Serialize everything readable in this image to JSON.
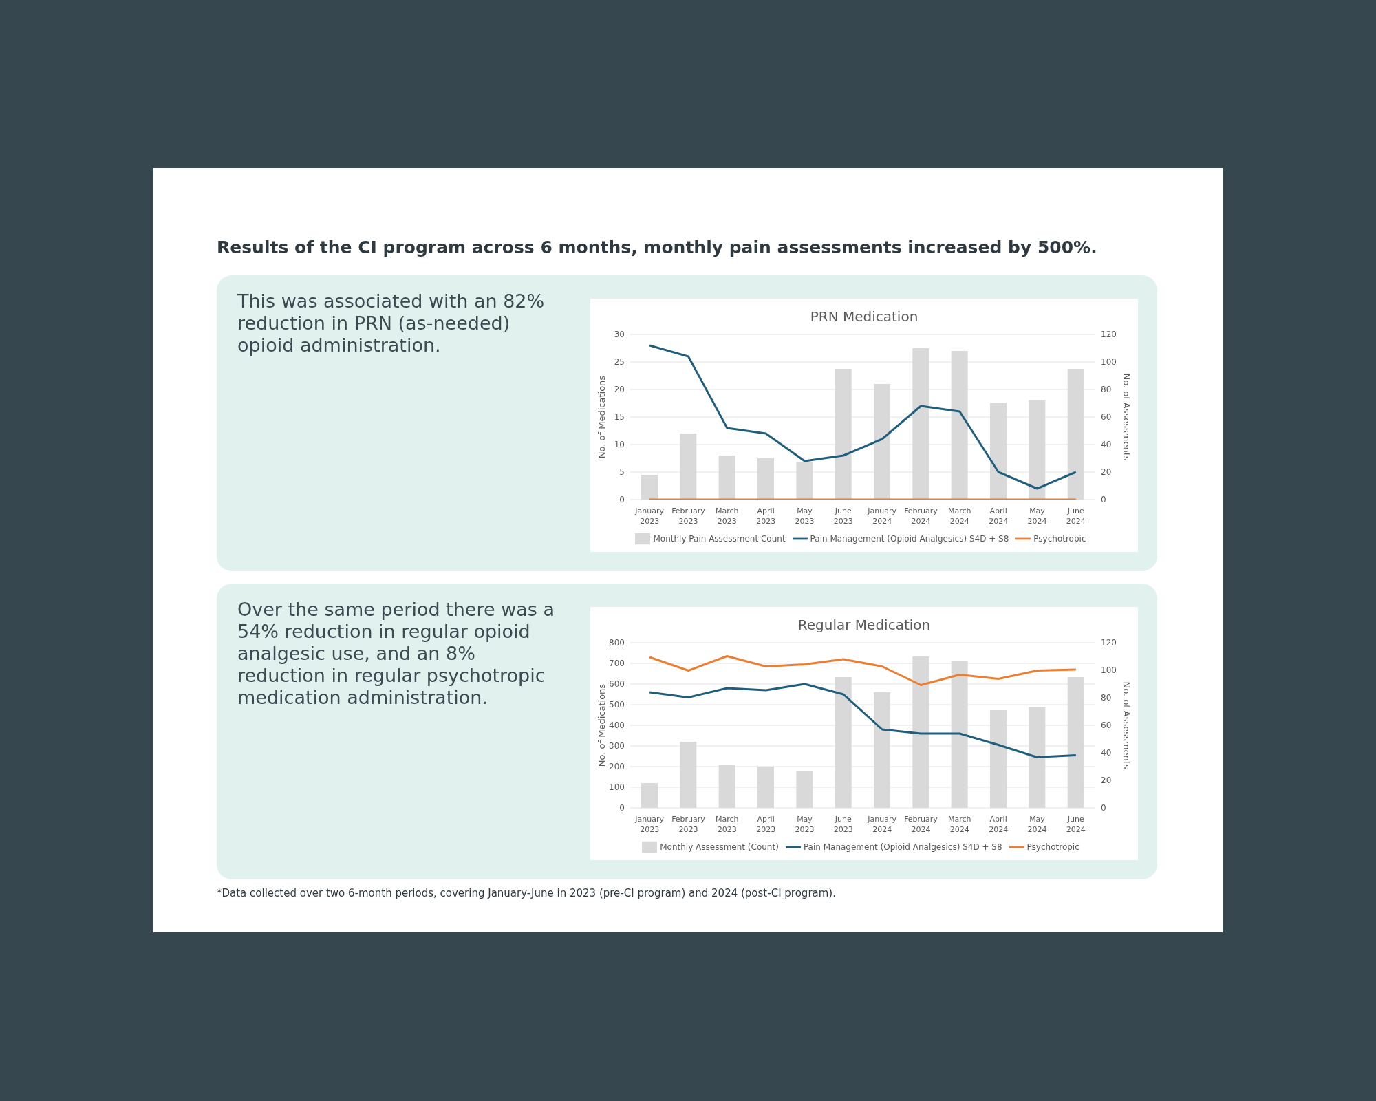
{
  "chart_data": [
    {
      "type": "bar",
      "title": "PRN Medication",
      "ylabel": "No. of Medications",
      "y2label": "No. of Assessments",
      "annotations": [
        "Results of the CI program across 6 months, monthly pain assessments increased by 500%.",
        "This was associated with an 82% reduction in PRN (as-needed) opioid administration."
      ],
      "categories": [
        "January 2023",
        "February 2023",
        "March 2023",
        "April 2023",
        "May 2023",
        "June 2023",
        "January 2024",
        "February 2024",
        "March 2024",
        "April 2024",
        "May 2024",
        "June 2024"
      ],
      "series": [
        {
          "name": "Monthly Pain Assessment Count",
          "axis": "y2",
          "color": "#d9d9d9",
          "values": [
            18,
            48,
            32,
            30,
            27,
            95,
            84,
            110,
            108,
            70,
            72,
            95
          ]
        },
        {
          "name": "Pain Management (Opioid Analgesics) S4D + S8",
          "type": "line",
          "color": "#1f5f7d",
          "values": [
            28,
            26,
            13,
            12,
            7,
            8,
            11,
            17,
            16,
            5,
            2,
            5
          ]
        },
        {
          "name": "Psychotropic",
          "type": "line",
          "color": "#ed7d31",
          "values": [
            0,
            0,
            0,
            0,
            0,
            0,
            0,
            0,
            0,
            0,
            0,
            0
          ]
        }
      ],
      "ylim": [
        0,
        30
      ],
      "yticks": [
        0,
        5,
        10,
        15,
        20,
        25,
        30
      ],
      "y2lim": [
        0,
        120
      ],
      "y2ticks": [
        0,
        20,
        40,
        60,
        80,
        100,
        120
      ],
      "grid": "y",
      "legend": "bottom",
      "marker": "none",
      "line_style": "solid"
    },
    {
      "type": "bar",
      "title": "Regular Medication",
      "ylabel": "No. of Medications",
      "y2label": "No. of Assessments",
      "annotations": [
        "Over the same period there was a 54% reduction in regular opioid analgesic use, and an 8% reduction in regular psychotropic medication administration.",
        "*Data collected over two 6-month periods, covering January-June in 2023 (pre-CI program) and 2024 (post-CI program)."
      ],
      "categories": [
        "January 2023",
        "February 2023",
        "March 2023",
        "April 2023",
        "May 2023",
        "June 2023",
        "January 2024",
        "February 2024",
        "March 2024",
        "April 2024",
        "May 2024",
        "June 2024"
      ],
      "series": [
        {
          "name": "Monthly Assessment (Count)",
          "axis": "y2",
          "color": "#d9d9d9",
          "values": [
            18,
            48,
            31,
            30,
            27,
            95,
            84,
            110,
            107,
            71,
            73,
            95
          ]
        },
        {
          "name": "Pain Management (Opioid Analgesics) S4D + S8",
          "type": "line",
          "color": "#1f5f7d",
          "values": [
            560,
            535,
            580,
            570,
            600,
            550,
            380,
            360,
            360,
            305,
            245,
            255
          ]
        },
        {
          "name": "Psychotropic",
          "type": "line",
          "color": "#ed7d31",
          "values": [
            730,
            665,
            735,
            685,
            695,
            720,
            685,
            595,
            645,
            625,
            665,
            670
          ]
        }
      ],
      "ylim": [
        0,
        800
      ],
      "yticks": [
        0,
        100,
        200,
        300,
        400,
        500,
        600,
        700,
        800
      ],
      "y2lim": [
        0,
        120
      ],
      "y2ticks": [
        0,
        20,
        40,
        60,
        80,
        100,
        120
      ],
      "grid": "y",
      "legend": "bottom",
      "marker": "none",
      "line_style": "solid"
    }
  ]
}
